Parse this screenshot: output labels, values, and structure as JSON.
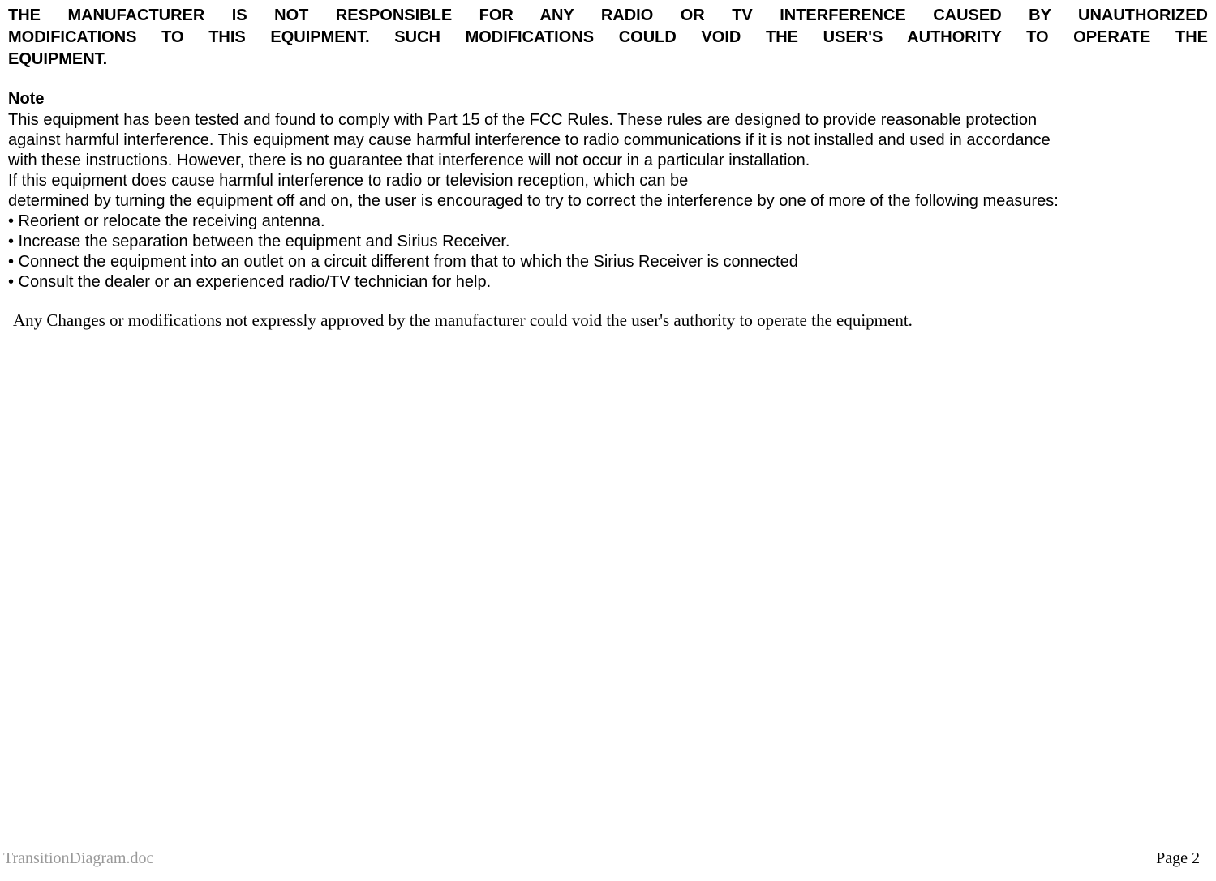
{
  "warning": {
    "line1": "THE MANUFACTURER IS NOT RESPONSIBLE FOR ANY RADIO OR TV INTERFERENCE CAUSED BY UNAUTHORIZED",
    "line2": "MODIFICATIONS TO THIS EQUIPMENT. SUCH MODIFICATIONS COULD VOID THE USER'S AUTHORITY TO OPERATE THE",
    "line3": "EQUIPMENT."
  },
  "note_heading": "Note",
  "body": {
    "para1a": "This equipment has been tested and found to comply with Part 15 of the FCC Rules. These rules are designed to provide reasonable protection",
    "para1b": "against harmful interference. This equipment may cause harmful interference to radio communications if it is not installed and used in accordance",
    "para1c": "with these instructions. However, there is no guarantee that interference will not occur in a particular installation.",
    "para2a": "If this equipment does cause harmful interference to radio or television reception, which can be",
    "para2b": "determined by turning the equipment off and on, the user is encouraged to try to correct the interference by one of more of the following measures:"
  },
  "bullets": {
    "b1": "• Reorient or relocate the receiving antenna.",
    "b2": "• Increase the separation between the equipment and Sirius Receiver.",
    "b3": "• Connect the equipment into an outlet on a circuit different from that to which the Sirius Receiver is connected",
    "b4": "• Consult the dealer or an experienced radio/TV technician for help."
  },
  "modification_note": "Any Changes or modifications not expressly approved by the manufacturer could void the user's authority to operate the equipment.",
  "footer": {
    "filename": "TransitionDiagram.doc",
    "page": "Page 2"
  }
}
